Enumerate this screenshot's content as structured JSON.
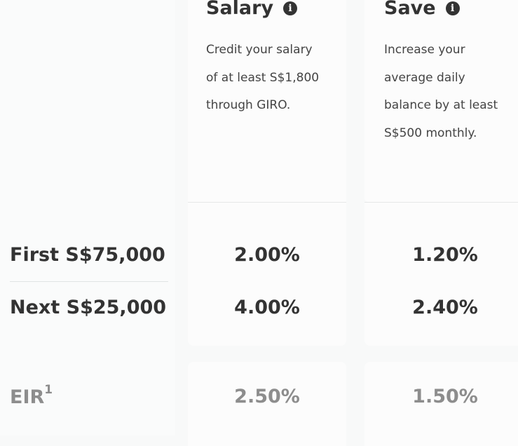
{
  "columns": [
    {
      "title": "Salary",
      "description": "Credit your salary\nof at least S$1,800\nthrough GIRO.",
      "rates": [
        "2.00%",
        "4.00%"
      ],
      "eir": "2.50%"
    },
    {
      "title": "Save",
      "description": "Increase your\naverage daily\nbalance by at least\nS$500 monthly.",
      "rates": [
        "1.20%",
        "2.40%"
      ],
      "eir": "1.50%"
    }
  ],
  "rows": [
    {
      "label": "First S$75,000"
    },
    {
      "label": "Next S$25,000"
    }
  ],
  "eir": {
    "label": "EIR",
    "footnote": "1"
  },
  "info_icon_glyph": "i",
  "colors": {
    "text": "#333333",
    "muted": "#8d8d8d",
    "card": "#fcfcfc",
    "background": "#f8f9f9"
  }
}
